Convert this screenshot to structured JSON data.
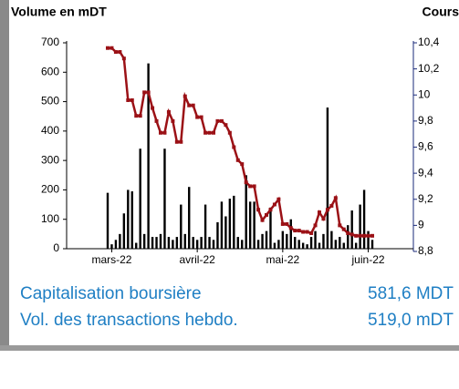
{
  "chart_data": {
    "type": "bar",
    "y_label": "Volume en mDT",
    "y2_label": "Cours",
    "categories": [
      null,
      "mars-22",
      null,
      null,
      null,
      null,
      null,
      null,
      null,
      null,
      null,
      null,
      null,
      null,
      null,
      null,
      null,
      null,
      null,
      null,
      null,
      null,
      "avril-22",
      null,
      null,
      null,
      null,
      null,
      null,
      null,
      null,
      null,
      null,
      null,
      null,
      null,
      null,
      null,
      null,
      null,
      null,
      null,
      null,
      "mai-22",
      null,
      null,
      null,
      null,
      null,
      null,
      null,
      null,
      null,
      null,
      null,
      null,
      null,
      null,
      null,
      null,
      null,
      null,
      null,
      null,
      "juin-22",
      null
    ],
    "series": [
      {
        "type": "bar",
        "color": "#000000",
        "values": [
          190,
          15,
          30,
          50,
          120,
          200,
          195,
          20,
          340,
          50,
          630,
          40,
          40,
          50,
          340,
          40,
          30,
          40,
          150,
          50,
          210,
          40,
          30,
          40,
          150,
          40,
          30,
          90,
          160,
          110,
          170,
          180,
          40,
          30,
          250,
          160,
          160,
          30,
          50,
          60,
          140,
          20,
          30,
          60,
          50,
          100,
          40,
          30,
          20,
          15,
          40,
          60,
          20,
          50,
          480,
          60,
          30,
          40,
          20,
          80,
          130,
          20,
          150,
          200,
          60,
          30
        ]
      },
      {
        "type": "line",
        "axis": "y2",
        "color": "#9b1116",
        "values": [
          10.36,
          10.36,
          10.33,
          10.33,
          10.28,
          9.96,
          9.96,
          9.84,
          9.84,
          10.02,
          10.02,
          9.9,
          9.8,
          9.71,
          9.71,
          9.87,
          9.8,
          9.64,
          9.64,
          9.99,
          9.92,
          9.92,
          9.83,
          9.83,
          9.71,
          9.71,
          9.71,
          9.8,
          9.8,
          9.77,
          9.71,
          9.6,
          9.5,
          9.47,
          9.33,
          9.3,
          9.3,
          9.12,
          9.04,
          9.08,
          9.12,
          9.16,
          9.2,
          9.01,
          9.01,
          8.98,
          8.96,
          8.96,
          8.95,
          8.95,
          8.94,
          9.0,
          9.1,
          9.05,
          9.12,
          9.15,
          9.21,
          9.0,
          8.97,
          8.94,
          8.93,
          8.92,
          8.92,
          8.92,
          8.92,
          8.92
        ]
      }
    ],
    "ylim": [
      0,
      700
    ],
    "yticks": [
      0,
      100,
      200,
      300,
      400,
      500,
      600,
      700
    ],
    "y2lim": [
      8.8,
      10.4
    ],
    "y2ticks": [
      {
        "value": 8.8,
        "label": "8,8"
      },
      {
        "value": 9,
        "label": "9"
      },
      {
        "value": 9.2,
        "label": "9,2"
      },
      {
        "value": 9.4,
        "label": "9,4"
      },
      {
        "value": 9.6,
        "label": "9,6"
      },
      {
        "value": 9.8,
        "label": "9,8"
      },
      {
        "value": 10,
        "label": "10"
      },
      {
        "value": 10.2,
        "label": "10,2"
      },
      {
        "value": 10.4,
        "label": "10,4"
      }
    ]
  },
  "stats": [
    {
      "label": "Capitalisation boursière",
      "value": "581,6 MDT"
    },
    {
      "label": "Vol. des transactions hebdo.",
      "value": "519,0 mDT"
    }
  ]
}
